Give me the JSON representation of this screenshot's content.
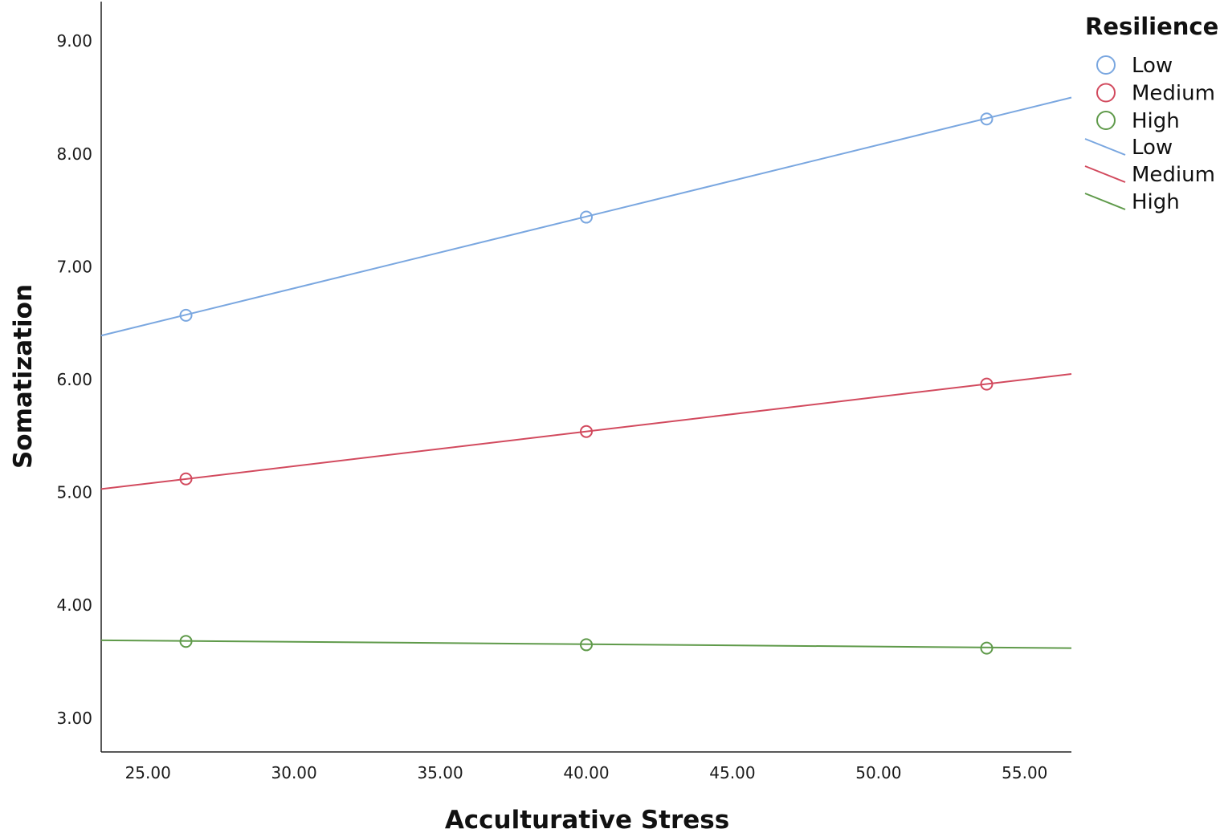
{
  "chart_data": {
    "type": "line",
    "xlabel": "Acculturative Stress",
    "ylabel": "Somatization",
    "xlim": [
      23.4,
      56.6
    ],
    "ylim": [
      2.7,
      9.35
    ],
    "x_ticks": [
      "25.00",
      "30.00",
      "35.00",
      "40.00",
      "45.00",
      "50.00",
      "55.00"
    ],
    "y_ticks": [
      "3.00",
      "4.00",
      "5.00",
      "6.00",
      "7.00",
      "8.00",
      "9.00"
    ],
    "grid": false,
    "legend": {
      "title": "Resilience",
      "position": "top-right",
      "marker_entries": [
        "Low",
        "Medium",
        "High"
      ],
      "line_entries": [
        "Low",
        "Medium",
        "High"
      ]
    },
    "series": [
      {
        "name": "Low",
        "color": "#7aa7e0",
        "x": [
          26.3,
          40.0,
          53.7
        ],
        "y": [
          6.57,
          7.44,
          8.31
        ],
        "fit": [
          [
            23.4,
            6.39
          ],
          [
            56.6,
            8.5
          ]
        ]
      },
      {
        "name": "Medium",
        "color": "#d24a5e",
        "x": [
          26.3,
          40.0,
          53.7
        ],
        "y": [
          5.12,
          5.54,
          5.96
        ],
        "fit": [
          [
            23.4,
            5.03
          ],
          [
            56.6,
            6.05
          ]
        ]
      },
      {
        "name": "High",
        "color": "#5f9a4a",
        "x": [
          26.3,
          40.0,
          53.7
        ],
        "y": [
          3.68,
          3.65,
          3.62
        ],
        "fit": [
          [
            23.4,
            3.69
          ],
          [
            56.6,
            3.62
          ]
        ]
      }
    ]
  }
}
